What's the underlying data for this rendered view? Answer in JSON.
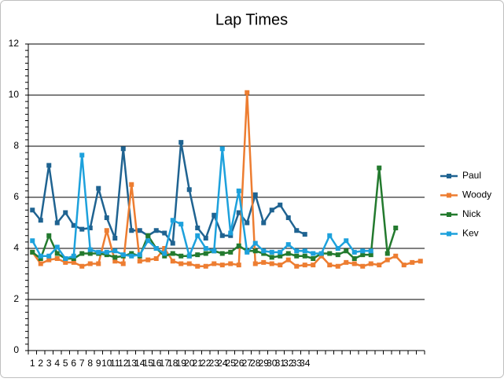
{
  "chart_data": {
    "type": "line",
    "title": "Lap Times",
    "categories": [
      "1",
      "2",
      "3",
      "4",
      "5",
      "6",
      "7",
      "8",
      "9",
      "10",
      "11",
      "12",
      "13",
      "14",
      "15",
      "16",
      "17",
      "18",
      "19",
      "20",
      "21",
      "22",
      "23",
      "24",
      "25",
      "26",
      "27",
      "28",
      "29",
      "30",
      "31",
      "32",
      "33",
      "34",
      null,
      null,
      null,
      null,
      null,
      null,
      null,
      null,
      null,
      null,
      null,
      null,
      null,
      null
    ],
    "series": [
      {
        "name": "Paul",
        "color": "#1f6391",
        "values": [
          5.5,
          5.1,
          7.25,
          5.0,
          5.4,
          4.9,
          4.75,
          4.8,
          6.35,
          5.2,
          4.4,
          7.9,
          4.7,
          4.7,
          4.5,
          4.7,
          4.6,
          4.2,
          8.15,
          6.3,
          4.8,
          4.4,
          5.3,
          4.5,
          4.5,
          5.4,
          5.0,
          6.1,
          5.0,
          5.5,
          5.7,
          5.2,
          4.7,
          4.55,
          null,
          null,
          null,
          null,
          null,
          null,
          null,
          null,
          null,
          null,
          null,
          null,
          null,
          null
        ]
      },
      {
        "name": "Woody",
        "color": "#ed7d31",
        "values": [
          3.85,
          3.4,
          3.55,
          3.6,
          3.45,
          3.45,
          3.3,
          3.4,
          3.4,
          4.7,
          3.5,
          3.4,
          6.5,
          3.5,
          3.55,
          3.6,
          4.0,
          3.5,
          3.4,
          3.4,
          3.3,
          3.3,
          3.4,
          3.35,
          3.4,
          3.35,
          10.1,
          3.4,
          3.45,
          3.4,
          3.35,
          3.55,
          3.3,
          3.35,
          3.35,
          3.7,
          3.35,
          3.3,
          3.45,
          3.4,
          3.3,
          3.4,
          3.35,
          3.55,
          3.7,
          3.35,
          3.45,
          3.5
        ]
      },
      {
        "name": "Nick",
        "color": "#237a2e",
        "values": [
          3.85,
          3.6,
          4.5,
          3.8,
          3.6,
          3.6,
          3.8,
          3.8,
          3.8,
          3.75,
          3.65,
          3.7,
          3.8,
          3.7,
          4.5,
          4.0,
          3.7,
          3.8,
          3.7,
          3.7,
          3.75,
          3.8,
          3.9,
          3.8,
          3.85,
          4.1,
          3.9,
          3.9,
          3.8,
          3.65,
          3.7,
          3.8,
          3.7,
          3.7,
          3.6,
          3.8,
          3.8,
          3.75,
          3.9,
          3.6,
          3.75,
          3.75,
          7.15,
          3.8,
          4.8,
          null,
          null,
          null
        ]
      },
      {
        "name": "Kev",
        "color": "#1da1dc",
        "values": [
          4.3,
          3.7,
          3.7,
          4.05,
          3.6,
          3.7,
          7.65,
          3.95,
          3.85,
          3.85,
          3.9,
          3.75,
          3.7,
          3.75,
          4.3,
          4.0,
          3.8,
          5.1,
          4.95,
          3.7,
          4.5,
          4.0,
          3.9,
          7.9,
          4.6,
          6.25,
          3.85,
          4.2,
          3.9,
          3.85,
          3.85,
          4.15,
          3.9,
          3.9,
          3.8,
          3.8,
          4.5,
          4.0,
          4.3,
          3.85,
          3.9,
          3.9,
          null,
          null,
          null,
          null,
          null,
          null
        ]
      }
    ],
    "ylim": [
      0,
      12
    ],
    "yticks": [
      0,
      2,
      4,
      6,
      8,
      10,
      12
    ],
    "grid": true,
    "legend": "right"
  }
}
